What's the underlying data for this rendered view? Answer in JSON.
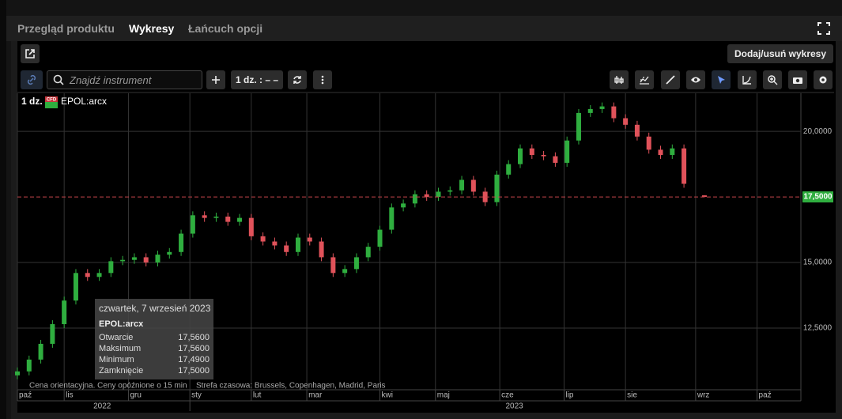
{
  "tabs": [
    "Przegląd produktu",
    "Wykresy",
    "Łańcuch opcji"
  ],
  "active_tab": 1,
  "toolbar": {
    "add_remove": "Dodaj/usuń wykresy",
    "search_placeholder": "Znajdź instrument",
    "interval": "1 dz. : – –"
  },
  "legend": {
    "interval": "1 dz.",
    "badge": "CFD",
    "symbol": "EPOL:arcx"
  },
  "footer": {
    "note": "Cena orientacyjna. Ceny opóźnione o 15 min",
    "timezone": "Strefa czasowa: Brussels, Copenhagen, Madrid, Paris"
  },
  "tooltip": {
    "date": "czwartek, 7 wrzesień 2023",
    "symbol": "EPOL:arcx",
    "rows": [
      {
        "label": "Otwarcie",
        "value": "17,5600"
      },
      {
        "label": "Maksimum",
        "value": "17,5600"
      },
      {
        "label": "Minimum",
        "value": "17,4900"
      },
      {
        "label": "Zamknięcie",
        "value": "17,5000"
      }
    ]
  },
  "chart_data": {
    "type": "candlestick",
    "up_color": "#2fae3f",
    "down_color": "#e0525a",
    "grid": true,
    "x": [
      0,
      4,
      8,
      12,
      16,
      20,
      24,
      28,
      32,
      36,
      40,
      44,
      48,
      52,
      56,
      60,
      64,
      68,
      72,
      76,
      80,
      84,
      88,
      92,
      96,
      100,
      104,
      108,
      112,
      116,
      120,
      124,
      128,
      132,
      136,
      140,
      144,
      148,
      152,
      156,
      160,
      164,
      168,
      172,
      176,
      180,
      184,
      188,
      192,
      196,
      200,
      204,
      208,
      212,
      216,
      220,
      224,
      228,
      235
    ],
    "open": [
      10.7,
      10.85,
      11.3,
      11.9,
      12.65,
      13.55,
      14.6,
      14.45,
      14.6,
      15.05,
      15.1,
      15.2,
      15.0,
      15.3,
      15.4,
      16.1,
      16.8,
      16.7,
      16.75,
      16.55,
      16.7,
      16.0,
      15.8,
      15.65,
      15.4,
      15.95,
      15.8,
      15.2,
      14.6,
      14.75,
      15.2,
      15.6,
      16.25,
      17.1,
      17.25,
      17.6,
      17.5,
      17.7,
      17.75,
      18.15,
      17.7,
      17.3,
      18.35,
      18.75,
      19.35,
      19.1,
      19.05,
      18.8,
      19.65,
      20.7,
      20.85,
      20.95,
      20.5,
      20.25,
      19.8,
      19.3,
      19.1,
      19.35,
      17.56
    ],
    "high": [
      11.0,
      11.45,
      12.05,
      12.8,
      13.7,
      14.75,
      14.75,
      14.75,
      15.2,
      15.25,
      15.35,
      15.35,
      15.45,
      15.55,
      16.25,
      16.95,
      16.95,
      16.9,
      16.9,
      16.85,
      16.85,
      16.15,
      15.95,
      15.8,
      16.1,
      16.1,
      15.95,
      15.35,
      14.9,
      15.35,
      15.75,
      16.4,
      17.25,
      17.4,
      17.75,
      17.75,
      17.85,
      17.9,
      18.3,
      18.3,
      17.85,
      18.5,
      18.9,
      19.5,
      19.5,
      19.25,
      19.2,
      19.8,
      20.85,
      21.0,
      21.1,
      21.1,
      20.65,
      20.4,
      19.95,
      19.45,
      19.5,
      19.5,
      17.56
    ],
    "low": [
      10.55,
      10.7,
      11.15,
      11.75,
      12.5,
      13.4,
      14.3,
      14.3,
      14.45,
      14.9,
      14.95,
      14.85,
      14.85,
      15.15,
      15.25,
      15.95,
      16.55,
      16.55,
      16.4,
      16.4,
      15.85,
      15.65,
      15.5,
      15.25,
      15.25,
      15.65,
      15.05,
      14.45,
      14.45,
      14.6,
      15.05,
      15.45,
      16.1,
      16.95,
      17.1,
      17.35,
      17.35,
      17.55,
      17.6,
      17.55,
      17.15,
      17.15,
      18.2,
      18.6,
      18.95,
      18.9,
      18.65,
      18.65,
      19.5,
      20.55,
      20.7,
      20.35,
      20.1,
      19.65,
      19.15,
      18.95,
      18.95,
      17.85,
      17.49
    ],
    "close": [
      10.85,
      11.3,
      11.9,
      12.65,
      13.55,
      14.6,
      14.45,
      14.6,
      15.05,
      15.1,
      15.2,
      15.0,
      15.3,
      15.4,
      16.1,
      16.8,
      16.7,
      16.75,
      16.55,
      16.7,
      16.0,
      15.8,
      15.65,
      15.4,
      15.95,
      15.8,
      15.2,
      14.6,
      14.75,
      15.2,
      15.6,
      16.25,
      17.1,
      17.25,
      17.6,
      17.5,
      17.7,
      17.75,
      18.15,
      17.7,
      17.3,
      18.35,
      18.75,
      19.35,
      19.1,
      19.05,
      18.8,
      19.65,
      20.7,
      20.85,
      20.95,
      20.5,
      20.25,
      19.8,
      19.3,
      19.1,
      19.35,
      18.0,
      17.5
    ],
    "xlim": [
      0,
      268
    ],
    "ylim": [
      10.15,
      21.45
    ],
    "yticks": [
      {
        "value": 12.5,
        "label": "12,5000"
      },
      {
        "value": 15,
        "label": "15,0000"
      },
      {
        "value": 20,
        "label": "20,0000"
      }
    ],
    "xticks": [
      {
        "value": 0,
        "label": "paź"
      },
      {
        "value": 16,
        "label": "lis"
      },
      {
        "value": 38,
        "label": "gru"
      },
      {
        "value": 59,
        "label": "sty"
      },
      {
        "value": 80,
        "label": "lut"
      },
      {
        "value": 99,
        "label": "mar"
      },
      {
        "value": 124,
        "label": "kwi"
      },
      {
        "value": 143,
        "label": "maj"
      },
      {
        "value": 165,
        "label": "cze"
      },
      {
        "value": 187,
        "label": "lip"
      },
      {
        "value": 208,
        "label": "sie"
      },
      {
        "value": 232,
        "label": "wrz"
      },
      {
        "value": 253,
        "label": "paź"
      }
    ],
    "years": [
      {
        "value": 29,
        "label": "2022"
      },
      {
        "value": 170,
        "label": "2023"
      }
    ],
    "last_price": {
      "value": 17.5,
      "label": "17,5000"
    }
  }
}
